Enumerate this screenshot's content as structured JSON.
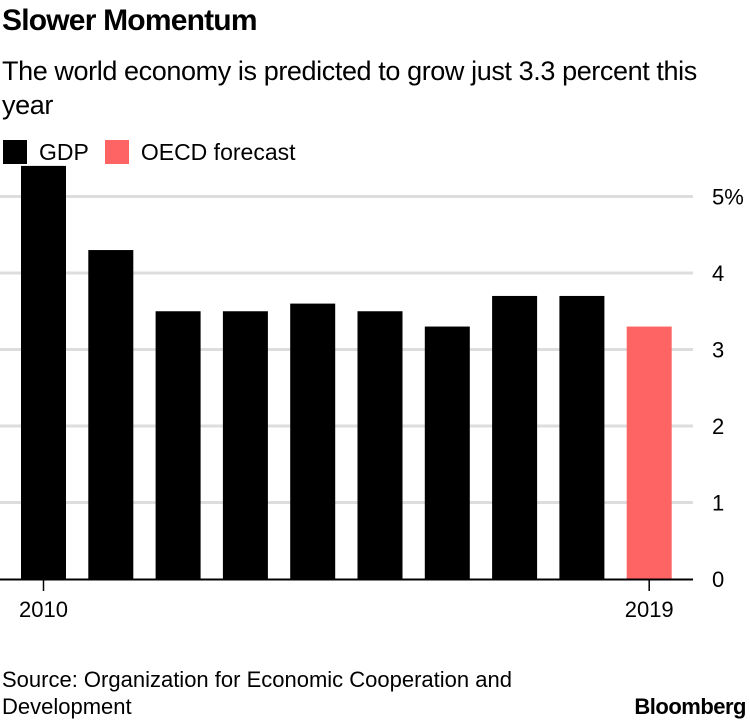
{
  "title": "Slower Momentum",
  "subtitle": "The world economy is predicted to grow just 3.3 percent this year",
  "legend": [
    {
      "label": "GDP",
      "color": "#000000"
    },
    {
      "label": "OECD forecast",
      "color": "#ff6464"
    }
  ],
  "source": "Source: Organization for Economic Cooperation and Development",
  "brand": "Bloomberg",
  "chart_data": {
    "type": "bar",
    "title": "Slower Momentum",
    "subtitle": "The world economy is predicted to grow just 3.3 percent this year",
    "xlabel": "",
    "ylabel": "",
    "categories": [
      "2010",
      "2011",
      "2012",
      "2013",
      "2014",
      "2015",
      "2016",
      "2017",
      "2018",
      "2019"
    ],
    "values": [
      5.4,
      4.3,
      3.5,
      3.5,
      3.6,
      3.5,
      3.3,
      3.7,
      3.7,
      3.3
    ],
    "bar_series": [
      "GDP",
      "GDP",
      "GDP",
      "GDP",
      "GDP",
      "GDP",
      "GDP",
      "GDP",
      "GDP",
      "OECD forecast"
    ],
    "series_colors": {
      "GDP": "#000000",
      "OECD forecast": "#ff6464"
    },
    "x_tick_labels": [
      {
        "category": "2010",
        "label": "2010"
      },
      {
        "category": "2019",
        "label": "2019"
      }
    ],
    "y_ticks": [
      0,
      1,
      2,
      3,
      4,
      5
    ],
    "y_tick_labels": [
      "0",
      "1",
      "2",
      "3",
      "4",
      "5%"
    ],
    "ylim": [
      0,
      5.4
    ],
    "y_axis_position": "right",
    "grid": true,
    "grid_color": "#dddddd",
    "legend_position": "top-left"
  }
}
